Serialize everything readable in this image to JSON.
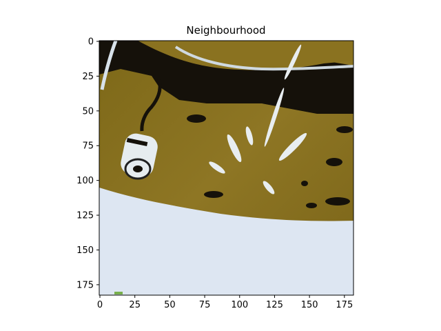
{
  "chart_data": {
    "type": "heatmap",
    "title": "Neighbourhood",
    "xlabel": "",
    "ylabel": "",
    "xlim": [
      -0.5,
      181.5
    ],
    "ylim": [
      182.5,
      -0.5
    ],
    "grid": false,
    "xticks": [
      0,
      25,
      50,
      75,
      100,
      125,
      150,
      175
    ],
    "yticks": [
      0,
      25,
      50,
      75,
      100,
      125,
      150,
      175
    ],
    "xtick_labels": [
      "0",
      "25",
      "50",
      "75",
      "100",
      "125",
      "150",
      "175"
    ],
    "ytick_labels": [
      "0",
      "25",
      "50",
      "75",
      "100",
      "125",
      "150",
      "175"
    ],
    "image_content": "cropped photo: olive/brown textured surface with black band, white cylindrical object, pale streaks, and pale blue-white region at bottom",
    "colors": {
      "olive": "#8a7220",
      "dark": "#141008",
      "pale": "#dde6f2",
      "streak": "#e8edf0"
    }
  }
}
